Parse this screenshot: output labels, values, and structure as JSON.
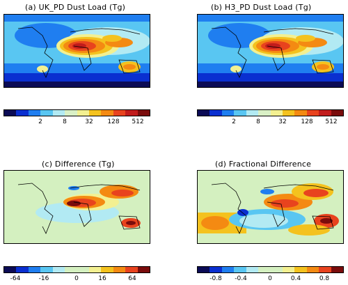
{
  "panels": {
    "a": {
      "title": "(a)   UK_PD Dust Load (Tg)"
    },
    "b": {
      "title": "(b)   H3_PD Dust Load (Tg)"
    },
    "c": {
      "title": "(c)   Difference (Tg)"
    },
    "d": {
      "title": "(d)   Fractional Difference"
    }
  },
  "colorbars": {
    "load": {
      "colors": [
        "#0b0b55",
        "#0a2fd0",
        "#1f7ef0",
        "#59c6f2",
        "#b2eaf3",
        "#d9f0c6",
        "#f3f091",
        "#f4c21e",
        "#f48a12",
        "#e8431e",
        "#c11c1c",
        "#7a0c0c"
      ],
      "labels": [
        "2",
        "8",
        "32",
        "128",
        "512"
      ]
    },
    "diff": {
      "colors": [
        "#0b0b55",
        "#0a2fd0",
        "#1f7ef0",
        "#59c6f2",
        "#b2eaf3",
        "#d4f0c0",
        "#d4f0c0",
        "#f3f091",
        "#f4c21e",
        "#f48a12",
        "#e8431e",
        "#7a0c0c"
      ],
      "labels": [
        "-64",
        "-16",
        "0",
        "16",
        "64"
      ]
    },
    "frac": {
      "colors": [
        "#0b0b55",
        "#0a2fd0",
        "#1f7ef0",
        "#59c6f2",
        "#b2eaf3",
        "#d4f0c0",
        "#d4f0c0",
        "#f3f091",
        "#f4c21e",
        "#f48a12",
        "#e8431e",
        "#7a0c0c"
      ],
      "labels": [
        "-0.8",
        "-0.4",
        "0",
        "0.4",
        "0.8"
      ]
    }
  },
  "chart_data": [
    {
      "type": "heatmap",
      "title": "(a)   UK_PD Dust Load (Tg)",
      "colorbar_labels": [
        "2",
        "8",
        "32",
        "128",
        "512"
      ]
    },
    {
      "type": "heatmap",
      "title": "(b)   H3_PD Dust Load (Tg)",
      "colorbar_labels": [
        "2",
        "8",
        "32",
        "128",
        "512"
      ]
    },
    {
      "type": "heatmap",
      "title": "(c)   Difference (Tg)",
      "colorbar_labels": [
        "-64",
        "-16",
        "0",
        "16",
        "64"
      ]
    },
    {
      "type": "heatmap",
      "title": "(d)   Fractional Difference",
      "colorbar_labels": [
        "-0.8",
        "-0.4",
        "0",
        "0.4",
        "0.8"
      ]
    }
  ]
}
